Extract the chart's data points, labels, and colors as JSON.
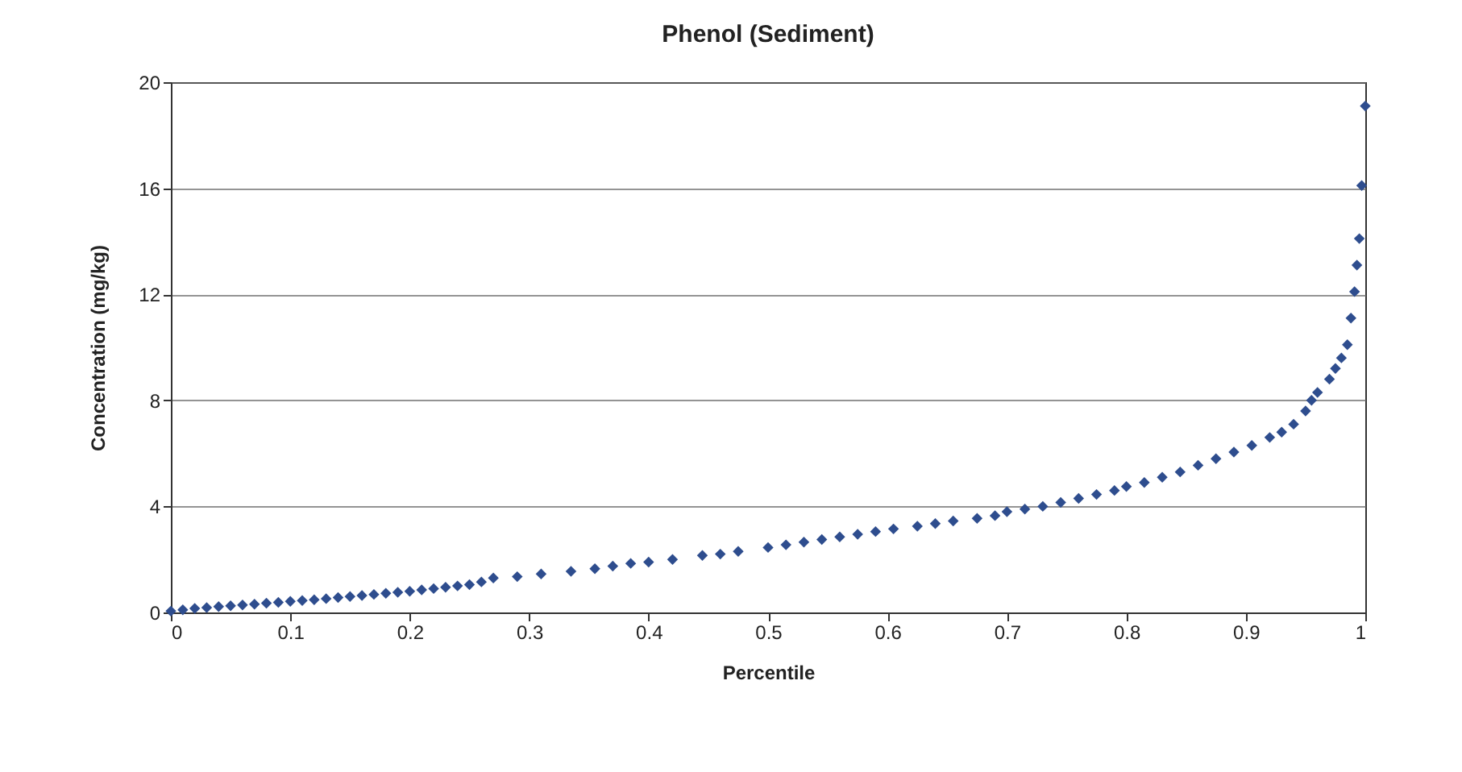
{
  "chart_data": {
    "type": "scatter",
    "title": "Phenol (Sediment)",
    "xlabel": "Percentile",
    "ylabel": "Concentration (mg/kg)",
    "x": [
      0,
      0.01,
      0.02,
      0.03,
      0.04,
      0.05,
      0.06,
      0.07,
      0.08,
      0.09,
      0.1,
      0.11,
      0.12,
      0.13,
      0.14,
      0.15,
      0.16,
      0.17,
      0.18,
      0.19,
      0.2,
      0.21,
      0.22,
      0.23,
      0.24,
      0.25,
      0.26,
      0.27,
      0.29,
      0.31,
      0.335,
      0.355,
      0.37,
      0.385,
      0.4,
      0.42,
      0.445,
      0.46,
      0.475,
      0.5,
      0.515,
      0.53,
      0.545,
      0.56,
      0.575,
      0.59,
      0.605,
      0.625,
      0.64,
      0.655,
      0.675,
      0.69,
      0.7,
      0.715,
      0.73,
      0.745,
      0.76,
      0.775,
      0.79,
      0.8,
      0.815,
      0.83,
      0.845,
      0.86,
      0.875,
      0.89,
      0.905,
      0.92,
      0.93,
      0.94,
      0.95,
      0.955,
      0.96,
      0.97,
      0.975,
      0.98,
      0.985,
      0.988,
      0.991,
      0.993,
      0.995,
      0.997,
      1.0
    ],
    "series": [
      {
        "color": "#2e4d8e",
        "values": [
          0.05,
          0.1,
          0.15,
          0.18,
          0.22,
          0.25,
          0.28,
          0.31,
          0.35,
          0.38,
          0.42,
          0.45,
          0.48,
          0.52,
          0.56,
          0.6,
          0.64,
          0.68,
          0.72,
          0.76,
          0.8,
          0.85,
          0.9,
          0.95,
          1.0,
          1.05,
          1.15,
          1.3,
          1.35,
          1.45,
          1.55,
          1.65,
          1.75,
          1.85,
          1.9,
          2.0,
          2.15,
          2.2,
          2.3,
          2.45,
          2.55,
          2.65,
          2.75,
          2.85,
          2.95,
          3.05,
          3.15,
          3.25,
          3.35,
          3.45,
          3.55,
          3.65,
          3.8,
          3.9,
          4.0,
          4.15,
          4.3,
          4.45,
          4.6,
          4.75,
          4.9,
          5.1,
          5.3,
          5.55,
          5.8,
          6.05,
          6.3,
          6.6,
          6.8,
          7.1,
          7.6,
          8.0,
          8.3,
          8.8,
          9.2,
          9.6,
          10.1,
          11.1,
          12.1,
          13.1,
          14.1,
          16.1,
          19.1
        ]
      }
    ],
    "xlim": [
      0,
      1
    ],
    "xticks": [
      0,
      0.1,
      0.2,
      0.3,
      0.4,
      0.5,
      0.6,
      0.7,
      0.8,
      0.9,
      1
    ],
    "ylim": [
      0,
      20
    ],
    "yticks": [
      0,
      4,
      8,
      12,
      16,
      20
    ],
    "grid": "y",
    "marker": "diamond"
  }
}
